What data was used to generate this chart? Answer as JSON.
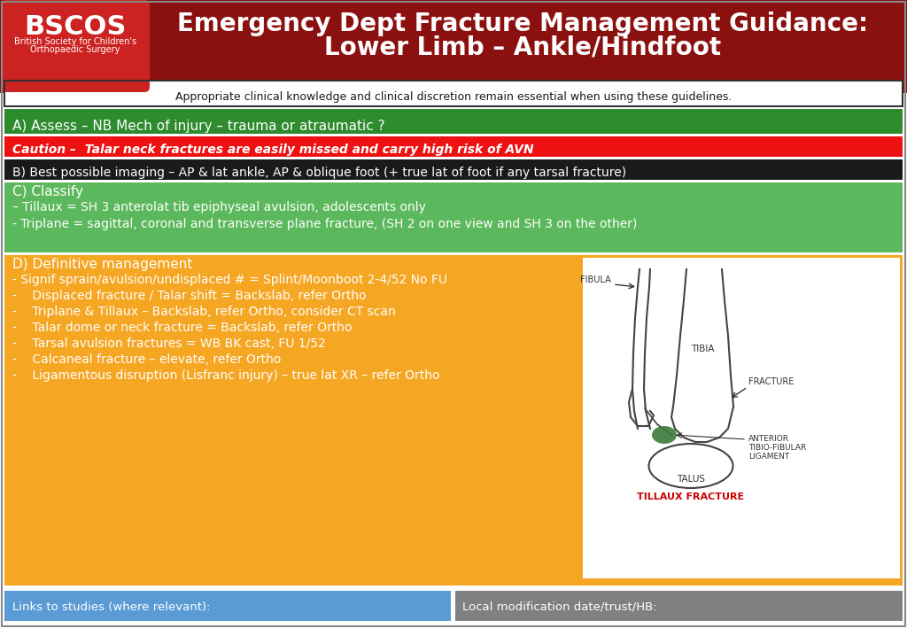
{
  "title_line1": "Emergency Dept Fracture Management Guidance:",
  "title_line2": "Lower Limb – Ankle/Hindfoot",
  "bscos_line1": "BSCOS",
  "bscos_line2": "British Society for Children's",
  "bscos_line3": "Orthopaedic Surgery",
  "disclaimer": "Appropriate clinical knowledge and clinical discretion remain essential when using these guidelines.",
  "section_a": "A) Assess – NB Mech of injury – trauma or atraumatic ?",
  "section_caution": "Caution –  Talar neck fractures are easily missed and carry high risk of AVN",
  "section_b": "B) Best possible imaging – AP & lat ankle, AP & oblique foot (+ true lat of foot if any tarsal fracture)",
  "section_c_title": "C) Classify",
  "section_c_line1": "– Tillaux = SH 3 anterolat tib epiphyseal avulsion, adolescents only",
  "section_c_line2": "- Triplane = sagittal, coronal and transverse plane fracture, (SH 2 on one view and SH 3 on the other)",
  "section_d_title": "D) Definitive management",
  "section_d_line1": "- Signif sprain/avulsion/undisplaced # = Splint/Moonboot 2-4/52 No FU",
  "section_d_line2": "-    Displaced fracture / Talar shift = Backslab, refer Ortho",
  "section_d_line3": "-    Triplane & Tillaux – Backslab, refer Ortho, consider CT scan",
  "section_d_line4": "-    Talar dome or neck fracture = Backslab, refer Ortho",
  "section_d_line5": "-    Tarsal avulsion fractures = WB BK cast, FU 1/52",
  "section_d_line6": "-    Calcaneal fracture – elevate, refer Ortho",
  "section_d_line7": "-    Ligamentous disruption (Lisfranc injury) – true lat XR – refer Ortho",
  "tillaux_label": "TILLAUX FRACTURE",
  "footer_left": "Links to studies (where relevant):",
  "footer_right": "Local modification date/trust/HB:",
  "color_header_bg": "#8B1010",
  "color_bscos_box": "#CC2222",
  "color_green_a": "#2E8B2E",
  "color_red_caution": "#EE1111",
  "color_black_b": "#1a1a1a",
  "color_green_c": "#5CB85C",
  "color_orange_d": "#F5A623",
  "color_white": "#FFFFFF",
  "color_footer_blue": "#5B9BD5",
  "color_footer_gray": "#808080",
  "color_tillaux_red": "#CC0000",
  "color_diagram_line": "#444444",
  "color_tillaux_green": "#3a7a3a"
}
